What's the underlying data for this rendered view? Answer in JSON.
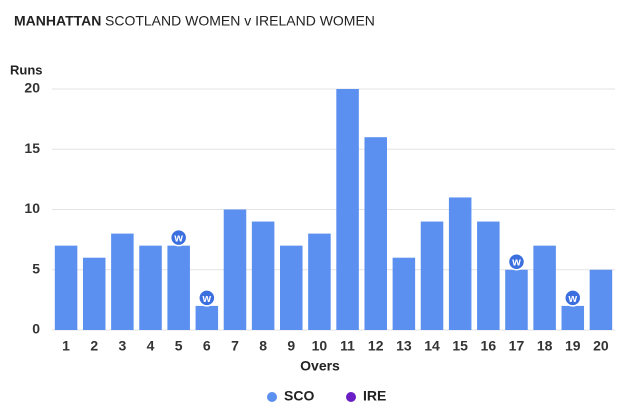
{
  "chart_data": {
    "type": "bar",
    "title": "MANHATTAN",
    "subtitle": "SCOTLAND WOMEN v IRELAND WOMEN",
    "y_label": "Runs",
    "x_label": "Overs",
    "categories": [
      "1",
      "2",
      "3",
      "4",
      "5",
      "6",
      "7",
      "8",
      "9",
      "10",
      "11",
      "12",
      "13",
      "14",
      "15",
      "16",
      "17",
      "18",
      "19",
      "20"
    ],
    "series": [
      {
        "name": "SCO",
        "color": "#5b8ff0",
        "values": [
          7,
          6,
          8,
          7,
          7,
          2,
          10,
          9,
          7,
          8,
          20,
          16,
          6,
          9,
          11,
          9,
          5,
          7,
          2,
          5
        ]
      },
      {
        "name": "IRE",
        "color": "#6a1fc4",
        "values": [
          null,
          null,
          null,
          null,
          null,
          null,
          null,
          null,
          null,
          null,
          null,
          null,
          null,
          null,
          null,
          null,
          null,
          null,
          null,
          null
        ]
      }
    ],
    "wickets": [
      0,
      0,
      0,
      0,
      1,
      1,
      0,
      0,
      0,
      0,
      0,
      0,
      0,
      0,
      0,
      0,
      1,
      0,
      1,
      0
    ],
    "wicket_label": "w",
    "wicket_color": "#3b6fe0",
    "ylim": [
      0,
      20
    ],
    "yticks": [
      0,
      5,
      10,
      15,
      20
    ],
    "grid": true,
    "legend": "bottom"
  }
}
